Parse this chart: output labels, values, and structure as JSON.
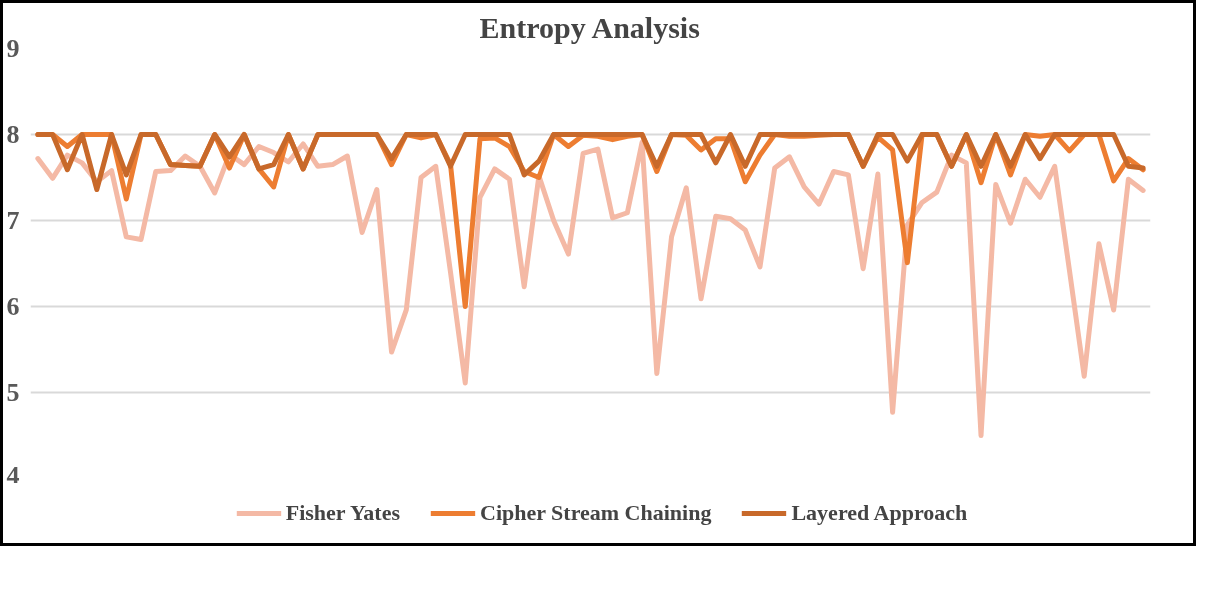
{
  "chart_data": {
    "type": "line",
    "title": "Entropy Analysis",
    "categories": [
      null,
      null,
      null,
      null,
      null,
      null,
      null,
      null,
      null,
      null,
      null,
      null,
      null,
      null,
      null,
      null,
      null,
      null,
      null,
      null,
      null,
      null,
      null,
      null,
      null,
      null,
      null,
      null,
      null,
      null,
      null,
      null,
      null,
      null,
      null,
      null,
      null,
      null,
      null,
      null,
      null,
      null,
      null,
      null,
      null,
      null,
      null,
      null,
      null,
      null,
      null,
      null,
      null,
      null,
      null,
      null,
      null,
      null,
      null,
      null,
      null,
      null,
      null,
      null,
      null,
      null,
      null,
      null,
      null,
      null,
      null,
      null,
      null,
      null,
      null,
      null
    ],
    "ylim": [
      4,
      9
    ],
    "yticks": [
      4,
      5,
      6,
      7,
      8,
      9
    ],
    "grid": "y",
    "legend": "bottom",
    "tick_labels": "y",
    "line_style": "solid",
    "series": [
      {
        "name": "Fisher Yates",
        "color": "#f4b9a5",
        "values": [
          7.72,
          7.49,
          7.76,
          7.67,
          7.45,
          7.58,
          6.81,
          6.78,
          7.57,
          7.58,
          7.75,
          7.63,
          7.32,
          7.77,
          7.65,
          7.86,
          7.79,
          7.68,
          7.89,
          7.63,
          7.65,
          7.75,
          6.86,
          7.36,
          5.47,
          5.96,
          7.5,
          7.63,
          6.4,
          5.11,
          7.27,
          7.6,
          7.48,
          6.23,
          7.52,
          7.0,
          6.61,
          7.78,
          7.83,
          7.03,
          7.09,
          7.91,
          5.22,
          6.81,
          7.38,
          6.09,
          7.05,
          7.02,
          6.89,
          6.46,
          7.61,
          7.74,
          7.39,
          7.19,
          7.57,
          7.53,
          6.44,
          7.54,
          4.77,
          6.95,
          7.21,
          7.33,
          7.76,
          7.67,
          4.5,
          7.42,
          6.97,
          7.48,
          7.27,
          7.63,
          6.42,
          5.19,
          6.73,
          5.96,
          7.48,
          7.35
        ]
      },
      {
        "name": "Cipher Stream Chaining",
        "color": "#ed7d31",
        "values": [
          8.0,
          8.0,
          7.86,
          8.0,
          8.0,
          8.0,
          7.25,
          8.0,
          8.0,
          7.65,
          7.64,
          7.63,
          8.0,
          7.61,
          8.0,
          7.6,
          7.39,
          8.0,
          7.6,
          8.0,
          8.0,
          8.0,
          8.0,
          8.0,
          7.65,
          8.0,
          7.96,
          8.0,
          7.65,
          6.0,
          7.95,
          7.96,
          7.86,
          7.57,
          7.5,
          8.0,
          7.86,
          7.99,
          7.98,
          7.94,
          7.98,
          8.0,
          7.57,
          8.0,
          7.99,
          7.82,
          7.95,
          7.95,
          7.45,
          7.76,
          8.0,
          7.98,
          7.98,
          7.99,
          8.0,
          8.0,
          7.63,
          7.97,
          7.82,
          6.51,
          8.0,
          8.0,
          7.63,
          8.0,
          7.44,
          8.0,
          7.53,
          8.0,
          7.98,
          8.0,
          7.81,
          8.0,
          8.0,
          7.46,
          7.72,
          7.59
        ]
      },
      {
        "name": "Layered Approach",
        "color": "#c8692a",
        "values": [
          8.0,
          8.0,
          7.59,
          8.0,
          7.36,
          8.0,
          7.53,
          8.0,
          8.0,
          7.65,
          7.64,
          7.63,
          8.0,
          7.74,
          8.0,
          7.6,
          7.65,
          8.0,
          7.6,
          8.0,
          8.0,
          8.0,
          8.0,
          8.0,
          7.72,
          8.0,
          8.0,
          8.0,
          7.63,
          8.0,
          8.0,
          8.0,
          8.0,
          7.53,
          7.69,
          8.0,
          8.0,
          8.0,
          8.0,
          8.0,
          8.0,
          8.0,
          7.63,
          8.0,
          8.0,
          8.0,
          7.67,
          8.0,
          7.63,
          8.0,
          8.0,
          8.0,
          8.0,
          8.0,
          8.0,
          8.0,
          7.63,
          8.0,
          8.0,
          7.69,
          8.0,
          8.0,
          7.63,
          8.0,
          7.63,
          8.0,
          7.63,
          8.0,
          7.72,
          8.0,
          8.0,
          8.0,
          8.0,
          8.0,
          7.63,
          7.61
        ]
      }
    ]
  }
}
